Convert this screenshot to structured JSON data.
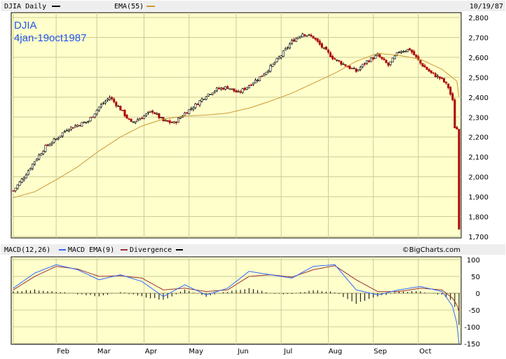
{
  "header": {
    "symbol_label": "DJIA Daily",
    "ema_label": "EMA(55)",
    "date_label": "10/19/87",
    "overlay_title": "DJIA",
    "overlay_range": "4jan-19oct1987"
  },
  "macd_header": {
    "macd_label": "MACD(12,26)",
    "ema_label": "MACD EMA(9)",
    "divergence_label": "Divergence",
    "copyright": "©BigCharts.com"
  },
  "colors": {
    "plot_bg": "#ffffcc",
    "grid": "#cccc99",
    "up_candle": "#000000",
    "down_candle": "#aa0000",
    "ema_line": "#cc9933",
    "macd_line": "#3366ff",
    "macd_signal": "#993333",
    "divergence": "#000000"
  },
  "chart_data": [
    {
      "type": "candlestick",
      "title": "DJIA",
      "subtitle": "4jan-19oct1987",
      "series": [
        {
          "name": "DJIA Daily",
          "style": "candlestick"
        },
        {
          "name": "EMA(55)",
          "style": "line",
          "x": [
            0,
            10,
            20,
            30,
            40,
            50,
            60,
            70,
            80,
            90,
            100,
            110,
            120,
            130,
            140,
            150,
            160,
            170,
            180,
            190,
            200,
            207,
            208
          ],
          "values": [
            1895,
            1925,
            1985,
            2050,
            2130,
            2200,
            2255,
            2290,
            2305,
            2310,
            2320,
            2345,
            2380,
            2420,
            2470,
            2520,
            2580,
            2620,
            2610,
            2590,
            2540,
            2480,
            2400
          ]
        }
      ],
      "trend": {
        "x": [
          0,
          5,
          10,
          15,
          20,
          25,
          30,
          35,
          40,
          45,
          50,
          55,
          60,
          65,
          70,
          75,
          80,
          85,
          90,
          95,
          100,
          105,
          110,
          115,
          120,
          125,
          130,
          135,
          140,
          145,
          150,
          155,
          160,
          165,
          170,
          175,
          180,
          185,
          190,
          195,
          200,
          203,
          205,
          206,
          207,
          208
        ],
        "values": [
          1930,
          2000,
          2080,
          2150,
          2190,
          2240,
          2260,
          2280,
          2350,
          2400,
          2340,
          2270,
          2300,
          2330,
          2280,
          2270,
          2320,
          2360,
          2410,
          2440,
          2450,
          2420,
          2460,
          2500,
          2550,
          2610,
          2680,
          2720,
          2700,
          2640,
          2590,
          2560,
          2530,
          2580,
          2610,
          2560,
          2630,
          2640,
          2570,
          2520,
          2490,
          2450,
          2380,
          2250,
          2240,
          1738
        ]
      },
      "x_ticks": [
        "Feb",
        "Mar",
        "Apr",
        "May",
        "Jun",
        "Jul",
        "Aug",
        "Sep",
        "Oct"
      ],
      "y_ticks": [
        "2,800",
        "2,700",
        "2,600",
        "2,500",
        "2,400",
        "2,300",
        "2,200",
        "2,100",
        "2,000",
        "1,900",
        "1,800",
        "1,700"
      ],
      "ylim": [
        1700,
        2800
      ],
      "grid": true
    },
    {
      "type": "line",
      "title": "MACD(12,26)",
      "series": [
        {
          "name": "MACD(12,26)",
          "x": [
            0,
            10,
            20,
            30,
            40,
            50,
            60,
            70,
            80,
            90,
            100,
            110,
            120,
            130,
            140,
            150,
            160,
            170,
            180,
            190,
            200,
            203,
            205,
            207,
            208
          ],
          "values": [
            15,
            60,
            85,
            70,
            40,
            55,
            35,
            -10,
            25,
            -5,
            15,
            65,
            55,
            45,
            80,
            85,
            10,
            -5,
            10,
            20,
            5,
            -20,
            -40,
            -90,
            -150
          ]
        },
        {
          "name": "MACD EMA(9)",
          "x": [
            0,
            10,
            20,
            30,
            40,
            50,
            60,
            70,
            80,
            90,
            100,
            110,
            120,
            130,
            140,
            150,
            160,
            170,
            180,
            190,
            200,
            203,
            205,
            207,
            208
          ],
          "values": [
            10,
            50,
            80,
            72,
            50,
            52,
            45,
            10,
            15,
            5,
            10,
            50,
            55,
            48,
            70,
            82,
            40,
            5,
            5,
            15,
            10,
            -5,
            -15,
            -35,
            -55
          ]
        },
        {
          "name": "Divergence",
          "style": "histogram",
          "x": [
            0,
            10,
            20,
            30,
            40,
            50,
            60,
            70,
            80,
            90,
            100,
            110,
            120,
            130,
            140,
            150,
            160,
            170,
            180,
            190,
            200,
            203,
            205,
            207,
            208
          ],
          "values": [
            5,
            10,
            5,
            -2,
            -10,
            3,
            -10,
            -20,
            10,
            -10,
            5,
            15,
            0,
            -3,
            10,
            3,
            -30,
            -10,
            5,
            5,
            -5,
            -15,
            -25,
            -55,
            -95
          ]
        }
      ],
      "x_ticks": [
        "Feb",
        "Mar",
        "Apr",
        "May",
        "Jun",
        "Jul",
        "Aug",
        "Sep",
        "Oct"
      ],
      "y_ticks": [
        "100",
        "50",
        "0",
        "-50",
        "-100",
        "-150"
      ],
      "ylim": [
        -150,
        100
      ],
      "grid": true
    }
  ]
}
